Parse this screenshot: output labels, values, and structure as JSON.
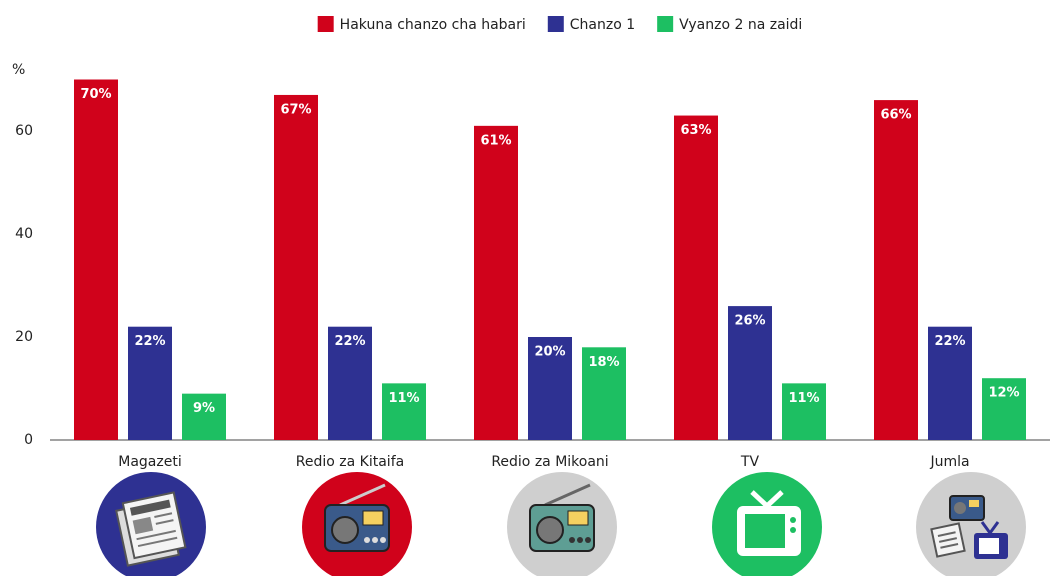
{
  "chart_data": {
    "type": "bar",
    "y_label": "%",
    "categories": [
      "Magazeti",
      "Redio za Kitaifa",
      "Redio za Mikoani",
      "TV",
      "Jumla"
    ],
    "series": [
      {
        "name": "Hakuna chanzo cha habari",
        "color": "#d0021b",
        "values": [
          70,
          67,
          61,
          63,
          66
        ],
        "value_labels": [
          "70%",
          "67%",
          "61%",
          "63%",
          "66%"
        ]
      },
      {
        "name": "Chanzo 1",
        "color": "#2e3192",
        "values": [
          22,
          22,
          20,
          26,
          22
        ],
        "value_labels": [
          "22%",
          "22%",
          "20%",
          "26%",
          "22%"
        ]
      },
      {
        "name": "Vyanzo 2 na zaidi",
        "color": "#1dbf62",
        "values": [
          9,
          11,
          18,
          11,
          12
        ],
        "value_labels": [
          "9%",
          "11%",
          "18%",
          "11%",
          "12%"
        ]
      }
    ],
    "ylim": [
      0,
      72
    ],
    "yticks": [
      0,
      20,
      40,
      60
    ],
    "grid": false,
    "legend": "top"
  }
}
